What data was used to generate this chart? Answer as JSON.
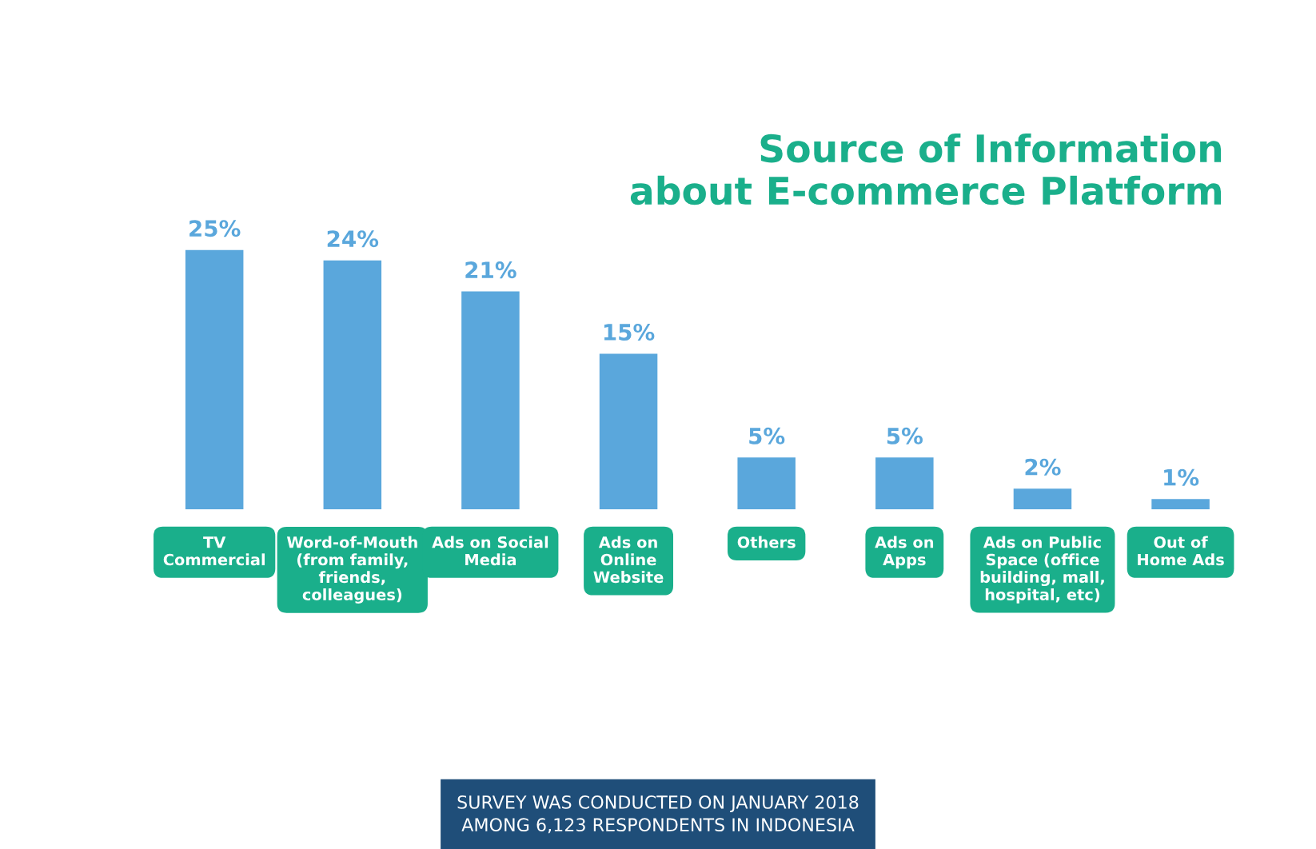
{
  "chart_data": {
    "type": "bar",
    "title": "Source of Information\nabout E-commerce Platform",
    "categories": [
      "TV\nCommercial",
      "Word-of-Mouth\n(from family,\nfriends,\ncolleagues)",
      "Ads on Social\nMedia",
      "Ads on\nOnline\nWebsite",
      "Others",
      "Ads on\nApps",
      "Ads on Public\nSpace (office\nbuilding, mall,\nhospital, etc)",
      "Out of\nHome Ads"
    ],
    "values": [
      25,
      24,
      21,
      15,
      5,
      5,
      2,
      1
    ],
    "color": "#5aa7dc",
    "value_labels": [
      "25%",
      "24%",
      "21%",
      "15%",
      "5%",
      "5%",
      "2%",
      "1%"
    ],
    "annotations": [
      "SURVEY WAS CONDUCTED ON JANUARY 2018\nAMONG 6,123 RESPONDENTS IN INDONESIA"
    ],
    "grid": false,
    "legend": false
  }
}
